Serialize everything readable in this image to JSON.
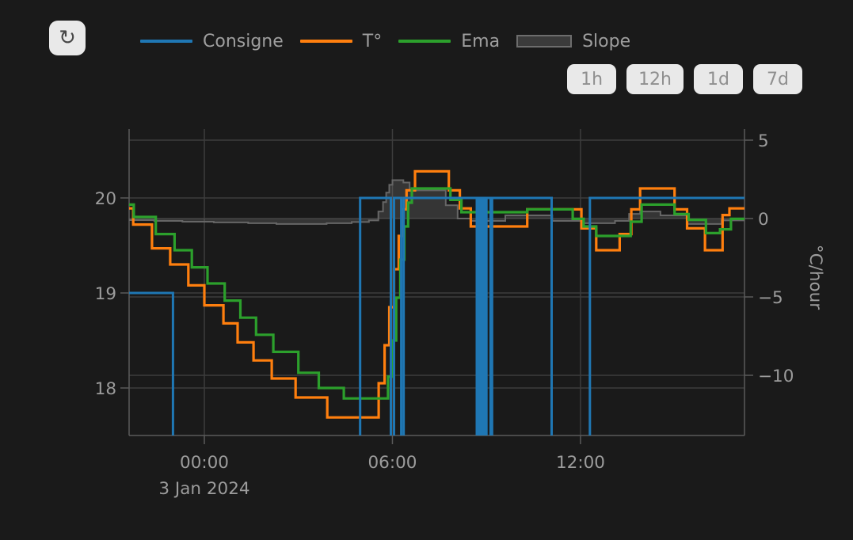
{
  "toolbar": {
    "refresh_icon": "↻",
    "range_buttons": [
      "1h",
      "12h",
      "1d",
      "7d"
    ]
  },
  "legend": [
    {
      "label": "Consigne",
      "marker": "line",
      "color": "#1f77b4"
    },
    {
      "label": "T°",
      "marker": "line",
      "color": "#ff7f0e"
    },
    {
      "label": "Ema",
      "marker": "line",
      "color": "#2ca02c"
    },
    {
      "label": "Slope",
      "marker": "rect",
      "color": "#6d6d6d",
      "fill": "#3b3b3b"
    }
  ],
  "chart_data": {
    "type": "line",
    "title": "",
    "x_axis": {
      "date_label": "3 Jan 2024",
      "unit": "hours_from_midnight",
      "range": [
        -2.4,
        17.23
      ],
      "ticks": [
        {
          "t": 0,
          "label": "00:00"
        },
        {
          "t": 6,
          "label": "06:00"
        },
        {
          "t": 12,
          "label": "12:00"
        }
      ]
    },
    "y_left": {
      "unit": "°C",
      "range": [
        17.5,
        20.73
      ],
      "ticks": [
        {
          "v": 20,
          "label": "20"
        },
        {
          "v": 19,
          "label": "19"
        },
        {
          "v": 18,
          "label": "18"
        }
      ]
    },
    "y_right": {
      "title": "°C/hour",
      "range": [
        -13.8,
        5.7
      ],
      "ticks": [
        {
          "v": 5,
          "label": "5"
        },
        {
          "v": 0,
          "label": "0"
        },
        {
          "v": -5,
          "label": "−5"
        },
        {
          "v": -10,
          "label": "−10"
        }
      ]
    },
    "series": [
      {
        "name": "Slope",
        "axis": "right",
        "color": "#666666",
        "fill": "rgba(125,125,125,0.28)",
        "width": 2,
        "step": true,
        "points": [
          [
            -2.4,
            -0.1
          ],
          [
            -1.6,
            -0.15
          ],
          [
            -0.7,
            -0.2
          ],
          [
            0.3,
            -0.25
          ],
          [
            1.4,
            -0.3
          ],
          [
            2.3,
            -0.35
          ],
          [
            3.9,
            -0.3
          ],
          [
            4.7,
            -0.22
          ],
          [
            5.25,
            -0.12
          ],
          [
            5.55,
            0.45
          ],
          [
            5.7,
            1.05
          ],
          [
            5.8,
            1.65
          ],
          [
            5.9,
            2.15
          ],
          [
            6.0,
            2.45
          ],
          [
            6.35,
            2.3
          ],
          [
            6.55,
            1.8
          ],
          [
            7.7,
            0.85
          ],
          [
            8.08,
            0.0
          ],
          [
            8.5,
            -0.15
          ],
          [
            9.6,
            0.2
          ],
          [
            11.1,
            -0.15
          ],
          [
            12.05,
            -0.3
          ],
          [
            13.1,
            -0.15
          ],
          [
            13.55,
            0.3
          ],
          [
            13.9,
            0.45
          ],
          [
            14.55,
            0.2
          ],
          [
            15.4,
            -0.35
          ],
          [
            16.5,
            -0.12
          ],
          [
            17.23,
            -0.1
          ]
        ]
      },
      {
        "name": "T°",
        "axis": "left",
        "color": "#ff7f0e",
        "width": 3.2,
        "step": true,
        "points": [
          [
            -2.4,
            19.89
          ],
          [
            -2.27,
            19.72
          ],
          [
            -1.67,
            19.47
          ],
          [
            -1.09,
            19.3
          ],
          [
            -0.51,
            19.08
          ],
          [
            0.0,
            18.87
          ],
          [
            0.61,
            18.68
          ],
          [
            1.06,
            18.48
          ],
          [
            1.57,
            18.29
          ],
          [
            2.15,
            18.1
          ],
          [
            2.91,
            17.9
          ],
          [
            3.92,
            17.69
          ],
          [
            5.56,
            18.05
          ],
          [
            5.75,
            18.45
          ],
          [
            5.9,
            18.85
          ],
          [
            6.05,
            19.25
          ],
          [
            6.2,
            19.6
          ],
          [
            6.32,
            19.88
          ],
          [
            6.45,
            20.08
          ],
          [
            6.72,
            20.28
          ],
          [
            7.8,
            20.08
          ],
          [
            8.15,
            19.89
          ],
          [
            8.5,
            19.7
          ],
          [
            10.3,
            19.88
          ],
          [
            12.03,
            19.68
          ],
          [
            12.5,
            19.45
          ],
          [
            13.25,
            19.62
          ],
          [
            13.62,
            19.88
          ],
          [
            13.9,
            20.1
          ],
          [
            15.0,
            19.88
          ],
          [
            15.4,
            19.68
          ],
          [
            15.97,
            19.45
          ],
          [
            16.53,
            19.82
          ],
          [
            16.75,
            19.89
          ],
          [
            17.23,
            19.89
          ]
        ]
      },
      {
        "name": "Ema",
        "axis": "left",
        "color": "#2ca02c",
        "width": 3.2,
        "step": true,
        "points": [
          [
            -2.4,
            19.93
          ],
          [
            -2.25,
            19.8
          ],
          [
            -1.55,
            19.62
          ],
          [
            -0.95,
            19.45
          ],
          [
            -0.4,
            19.27
          ],
          [
            0.1,
            19.1
          ],
          [
            0.65,
            18.92
          ],
          [
            1.15,
            18.74
          ],
          [
            1.65,
            18.56
          ],
          [
            2.2,
            18.38
          ],
          [
            3.0,
            18.16
          ],
          [
            3.65,
            18.0
          ],
          [
            4.45,
            17.89
          ],
          [
            5.86,
            18.12
          ],
          [
            6.0,
            18.5
          ],
          [
            6.12,
            18.95
          ],
          [
            6.25,
            19.35
          ],
          [
            6.38,
            19.7
          ],
          [
            6.5,
            19.95
          ],
          [
            6.62,
            20.1
          ],
          [
            7.85,
            19.98
          ],
          [
            8.2,
            19.85
          ],
          [
            10.3,
            19.88
          ],
          [
            11.75,
            19.78
          ],
          [
            12.1,
            19.7
          ],
          [
            12.5,
            19.6
          ],
          [
            13.6,
            19.75
          ],
          [
            13.95,
            19.93
          ],
          [
            15.0,
            19.83
          ],
          [
            15.45,
            19.77
          ],
          [
            16.0,
            19.63
          ],
          [
            16.45,
            19.67
          ],
          [
            16.8,
            19.78
          ],
          [
            17.23,
            19.78
          ]
        ]
      },
      {
        "name": "Consigne",
        "axis": "left",
        "color": "#1f77b4",
        "width": 3,
        "step": true,
        "points": [
          [
            -2.4,
            19
          ],
          [
            -1.0,
            17
          ],
          [
            4.97,
            20
          ],
          [
            5.95,
            17
          ],
          [
            6.05,
            20
          ],
          [
            6.28,
            17
          ],
          [
            6.36,
            20
          ],
          [
            8.69,
            17
          ],
          [
            8.74,
            20
          ],
          [
            8.78,
            17
          ],
          [
            8.83,
            20
          ],
          [
            8.86,
            17
          ],
          [
            8.91,
            20
          ],
          [
            8.95,
            17
          ],
          [
            9.0,
            20
          ],
          [
            9.13,
            17
          ],
          [
            9.18,
            20
          ],
          [
            11.08,
            17
          ],
          [
            12.3,
            20
          ],
          [
            17.23,
            20
          ]
        ]
      }
    ],
    "layout_hints": {
      "background": "#1a1a1a",
      "gridline_color": "#3d3d3d",
      "axis_line_color": "#5a5a5a",
      "tick_text_color": "#9c9c9c",
      "grid": true,
      "legend_position": "top"
    }
  }
}
